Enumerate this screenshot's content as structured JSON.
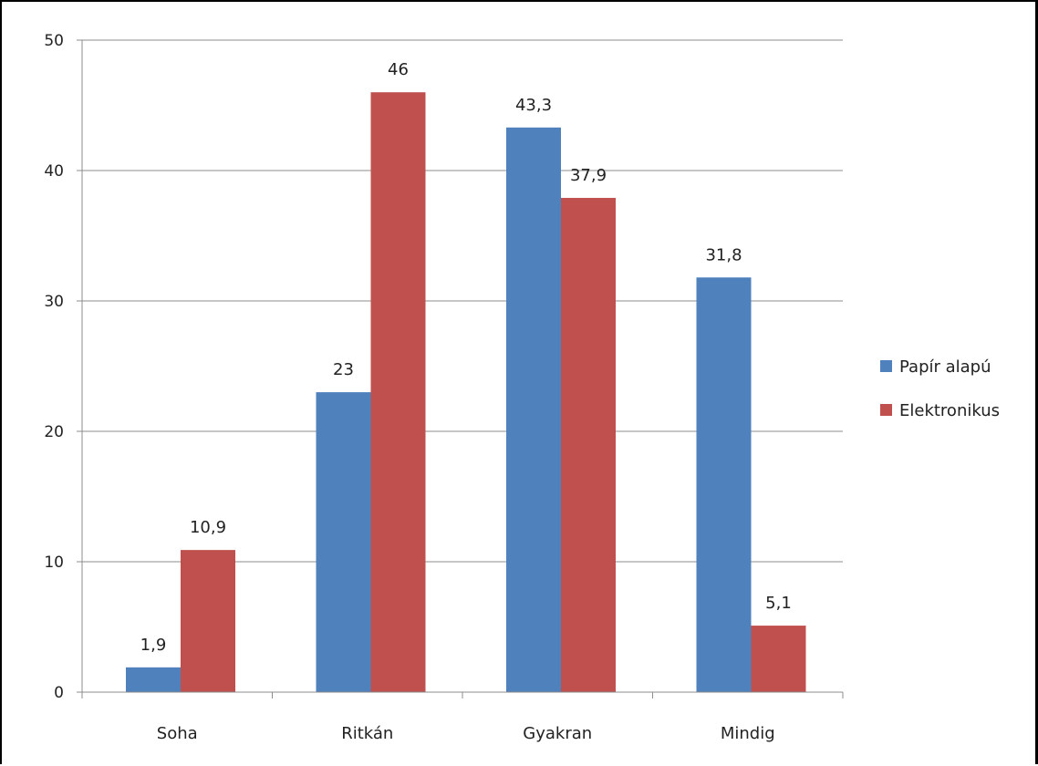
{
  "chart_data": {
    "type": "bar",
    "categories": [
      "Soha",
      "Ritkán",
      "Gyakran",
      "Mindig"
    ],
    "series": [
      {
        "name": "Papír alapú",
        "values": [
          1.9,
          23,
          43.3,
          31.8
        ],
        "color": "#4F81BD"
      },
      {
        "name": "Elektronikus",
        "values": [
          10.9,
          46,
          37.9,
          5.1
        ],
        "color": "#C0504D"
      }
    ],
    "data_labels": [
      [
        "1,9",
        "23",
        "43,3",
        "31,8"
      ],
      [
        "10,9",
        "46",
        "37,9",
        "5,1"
      ]
    ],
    "yticks": [
      0,
      10,
      20,
      30,
      40,
      50
    ],
    "ylim": [
      0,
      50
    ],
    "grid": true,
    "legend_position": "right",
    "title": "",
    "xlabel": "",
    "ylabel": ""
  }
}
